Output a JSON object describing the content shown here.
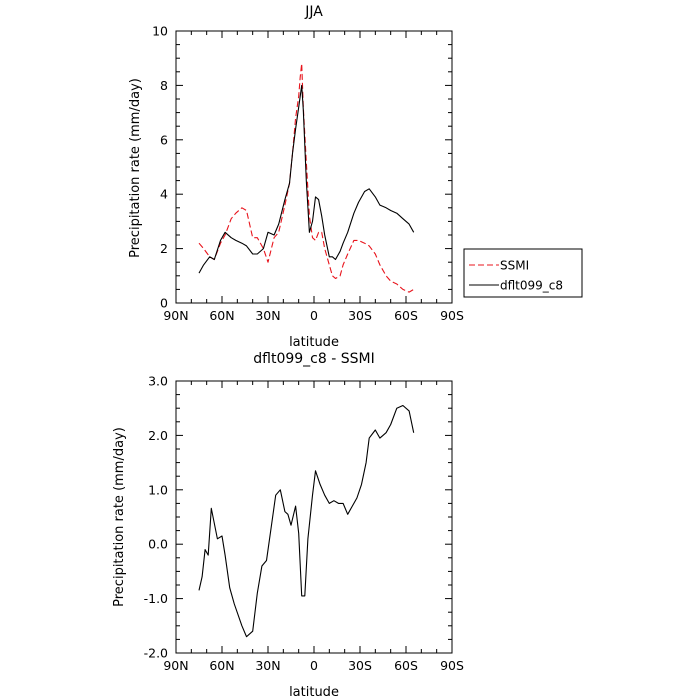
{
  "chart_data": [
    {
      "type": "line",
      "title": "JJA",
      "xlabel": "latitude",
      "ylabel": "Precipitation rate (mm/day)",
      "xlim": [
        90,
        -90
      ],
      "ylim": [
        0,
        10
      ],
      "xtick_values": [
        90,
        60,
        30,
        0,
        -30,
        -60,
        -90
      ],
      "xtick_labels": [
        "90N",
        "60N",
        "30N",
        "0",
        "30S",
        "60S",
        "90S"
      ],
      "ytick_values": [
        0,
        2,
        4,
        6,
        8,
        10
      ],
      "ytick_labels": [
        "0",
        "2",
        "4",
        "6",
        "8",
        "10"
      ],
      "legend_position": "right",
      "grid": false,
      "series": [
        {
          "name": "SSMI",
          "color": "#e8141c",
          "dash": "dashed",
          "x": [
            75,
            72,
            68,
            65,
            61,
            58,
            54,
            51,
            47,
            44,
            40,
            37,
            33,
            30,
            26,
            23,
            19,
            16,
            14,
            12,
            10,
            9,
            8,
            7,
            5,
            3,
            1,
            -1,
            -3,
            -5,
            -7,
            -10,
            -12,
            -14,
            -17,
            -19,
            -22,
            -26,
            -29,
            -33,
            -36,
            -40,
            -43,
            -47,
            -50,
            -54,
            -58,
            -62,
            -65
          ],
          "values": [
            2.2,
            2.0,
            1.7,
            1.6,
            2.2,
            2.5,
            3.1,
            3.3,
            3.5,
            3.4,
            2.4,
            2.4,
            2.0,
            1.5,
            2.4,
            2.6,
            3.6,
            4.4,
            5.5,
            6.8,
            7.6,
            8.3,
            8.8,
            7.2,
            5.2,
            3.2,
            2.4,
            2.3,
            2.6,
            2.6,
            2.0,
            1.4,
            1.0,
            0.9,
            1.0,
            1.4,
            1.8,
            2.3,
            2.3,
            2.2,
            2.1,
            1.8,
            1.4,
            1.0,
            0.8,
            0.7,
            0.5,
            0.4,
            0.5
          ]
        },
        {
          "name": "dflt099_c8",
          "color": "#000000",
          "dash": "solid",
          "x": [
            75,
            72,
            68,
            65,
            61,
            58,
            54,
            51,
            47,
            44,
            40,
            37,
            33,
            30,
            26,
            23,
            19,
            16,
            14,
            12,
            10,
            9,
            8,
            7,
            5,
            3,
            1,
            -1,
            -3,
            -5,
            -7,
            -10,
            -12,
            -14,
            -17,
            -19,
            -22,
            -26,
            -29,
            -33,
            -36,
            -40,
            -43,
            -47,
            -50,
            -54,
            -58,
            -62,
            -65
          ],
          "values": [
            1.1,
            1.4,
            1.7,
            1.6,
            2.3,
            2.6,
            2.4,
            2.3,
            2.2,
            2.1,
            1.8,
            1.8,
            2.0,
            2.6,
            2.5,
            2.9,
            3.8,
            4.4,
            5.5,
            6.4,
            7.2,
            7.6,
            8.0,
            7.1,
            4.5,
            2.6,
            3.0,
            3.9,
            3.8,
            3.2,
            2.5,
            1.7,
            1.7,
            1.6,
            1.9,
            2.2,
            2.6,
            3.3,
            3.7,
            4.1,
            4.2,
            3.9,
            3.6,
            3.5,
            3.4,
            3.3,
            3.1,
            2.9,
            2.6
          ]
        }
      ]
    },
    {
      "type": "line",
      "title": "dflt099_c8 - SSMI",
      "xlabel": "latitude",
      "ylabel": "Precipitation rate (mm/day)",
      "xlim": [
        90,
        -90
      ],
      "ylim": [
        -2,
        3
      ],
      "xtick_values": [
        90,
        60,
        30,
        0,
        -30,
        -60,
        -90
      ],
      "xtick_labels": [
        "90N",
        "60N",
        "30N",
        "0",
        "30S",
        "60S",
        "90S"
      ],
      "ytick_values": [
        -2,
        -1,
        0,
        1,
        2,
        3
      ],
      "ytick_labels": [
        "-2.0",
        "-1.0",
        "0.0",
        "1.0",
        "2.0",
        "3.0"
      ],
      "grid": false,
      "series": [
        {
          "name": "",
          "color": "#000000",
          "dash": "solid",
          "x": [
            75,
            73,
            71,
            69,
            67,
            63,
            60,
            58,
            55,
            52,
            47,
            44,
            40,
            37,
            34,
            31,
            28,
            25,
            22,
            19,
            17,
            15,
            12,
            10,
            8,
            6,
            4,
            1,
            -1,
            -4,
            -7,
            -10,
            -13,
            -16,
            -19,
            -22,
            -25,
            -28,
            -31,
            -34,
            -36,
            -40,
            -43,
            -47,
            -50,
            -54,
            -58,
            -62,
            -65
          ],
          "values": [
            -0.85,
            -0.6,
            -0.1,
            -0.2,
            0.66,
            0.1,
            0.15,
            -0.2,
            -0.8,
            -1.1,
            -1.5,
            -1.7,
            -1.6,
            -0.9,
            -0.4,
            -0.3,
            0.3,
            0.9,
            1.0,
            0.6,
            0.55,
            0.35,
            0.7,
            0.2,
            -0.95,
            -0.95,
            0.1,
            0.9,
            1.35,
            1.1,
            0.9,
            0.75,
            0.8,
            0.75,
            0.75,
            0.55,
            0.7,
            0.85,
            1.1,
            1.5,
            1.95,
            2.1,
            1.95,
            2.05,
            2.2,
            2.5,
            2.55,
            2.45,
            2.05
          ]
        }
      ]
    }
  ]
}
